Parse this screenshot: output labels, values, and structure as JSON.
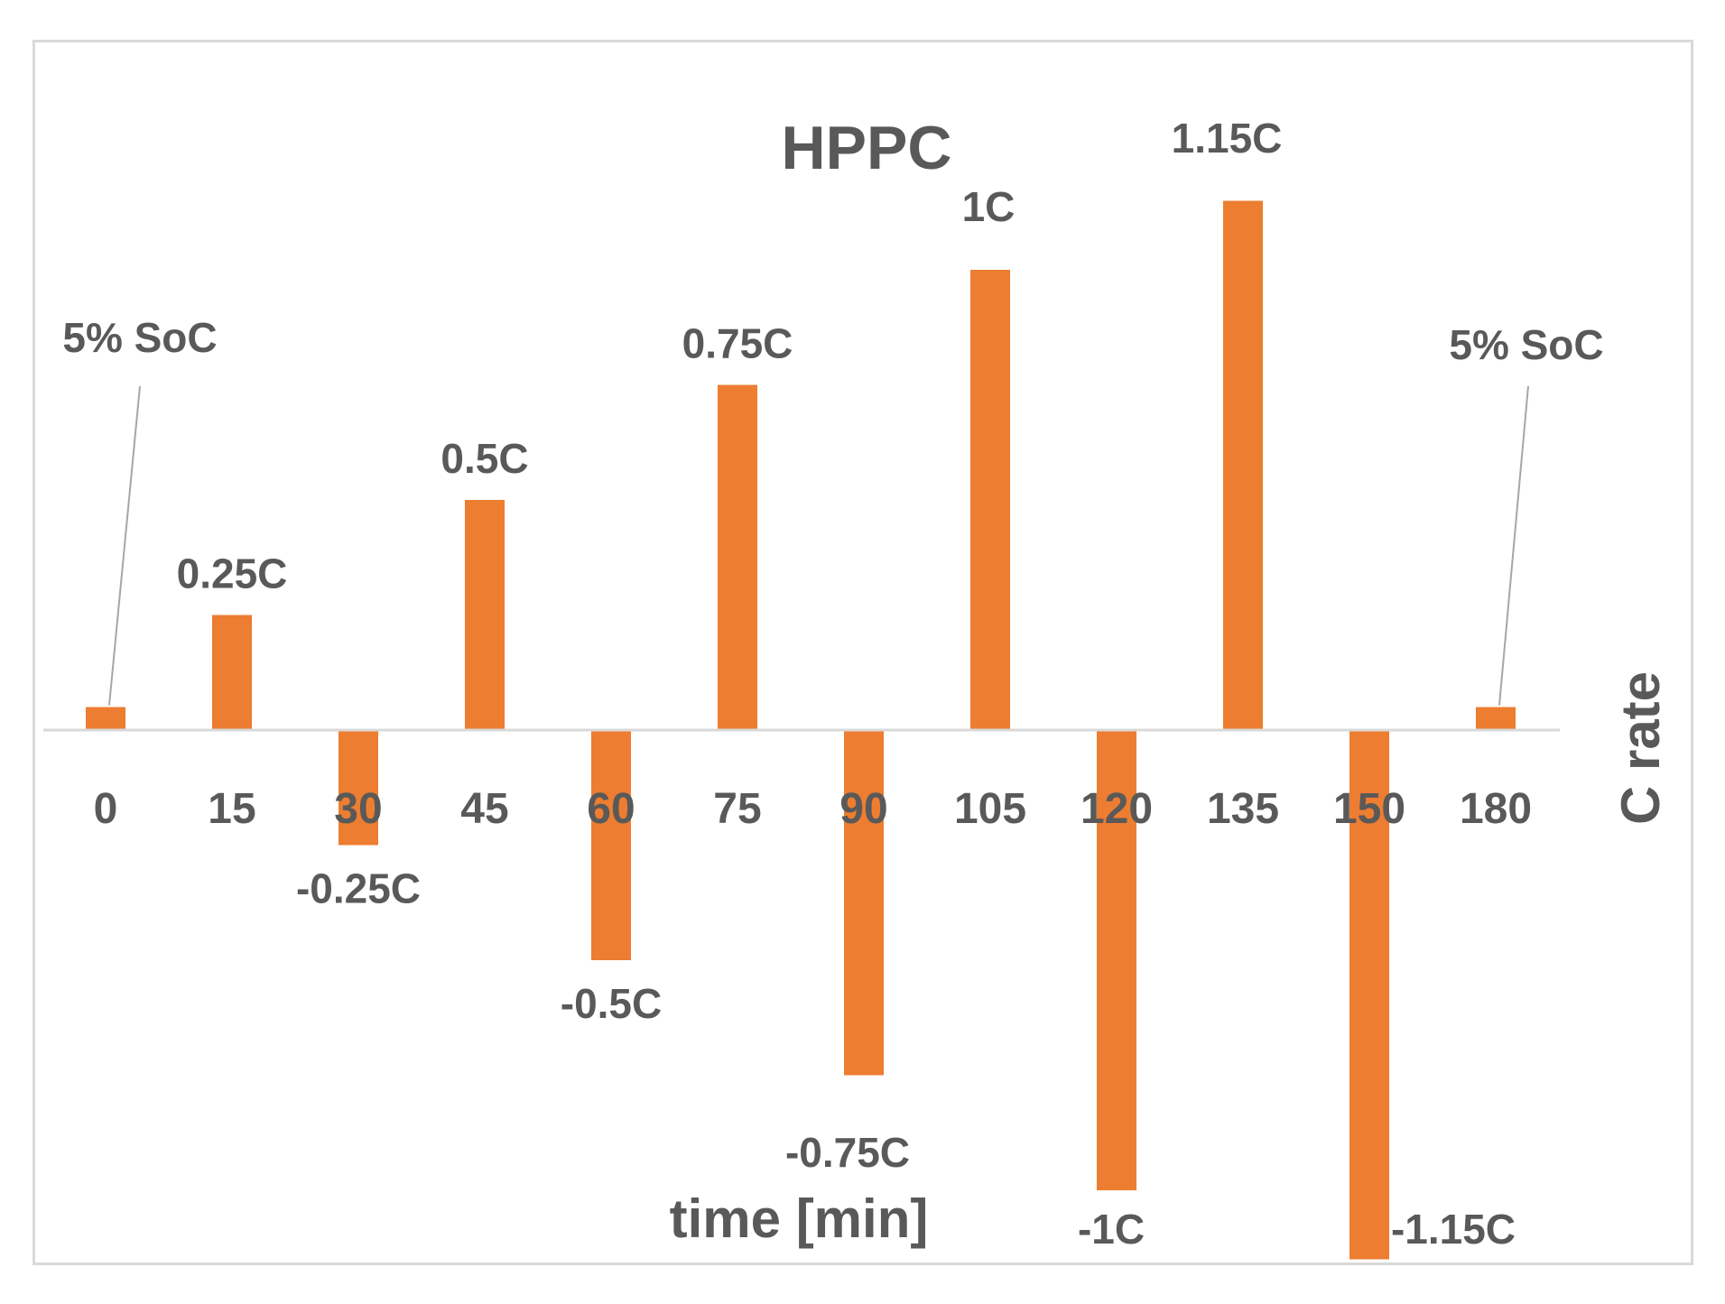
{
  "chart_data": {
    "type": "bar",
    "title": "HPPC",
    "xlabel": "time [min]",
    "ylabel": "C rate",
    "categories": [
      "0",
      "15",
      "30",
      "45",
      "60",
      "75",
      "90",
      "105",
      "120",
      "135",
      "150",
      "180"
    ],
    "values": [
      0.05,
      0.25,
      -0.25,
      0.5,
      -0.5,
      0.75,
      -0.75,
      1.0,
      -1.0,
      1.15,
      -1.15,
      0.05
    ],
    "data_labels": [
      "5% SoC",
      "0.25C",
      "-0.25C",
      "0.5C",
      "-0.5C",
      "0.75C",
      "-0.75C",
      "1C",
      "-1C",
      "1.15C",
      "-1.15C",
      "5% SoC"
    ],
    "ylim": [
      -1.15,
      1.15
    ],
    "grid": false,
    "legend": "none",
    "bar_color": "#ED7D31",
    "axis_color": "#d9d9d9",
    "text_color": "#595959"
  }
}
